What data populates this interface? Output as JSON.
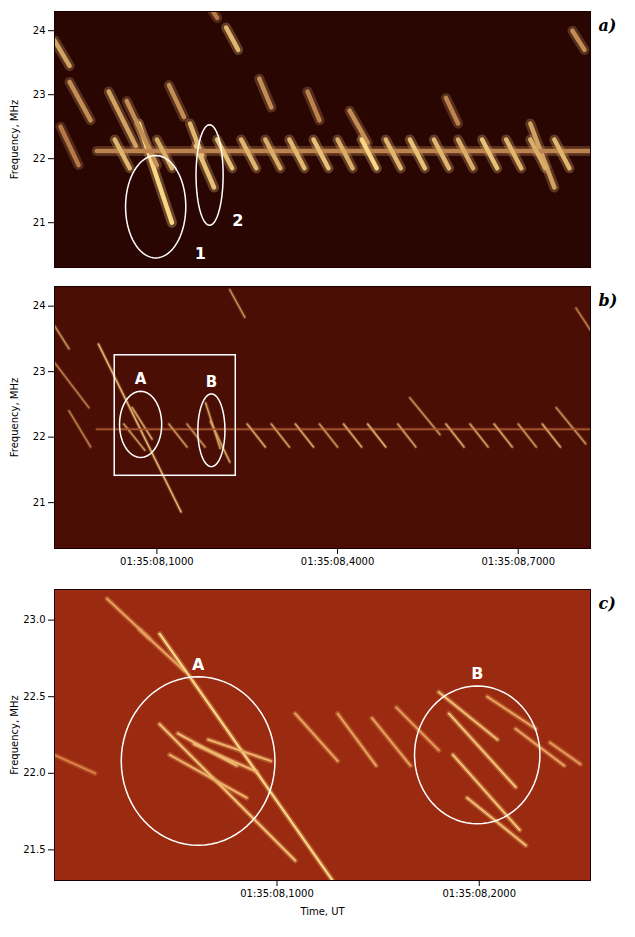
{
  "chart_data": [
    {
      "type": "spectrogram",
      "title": "a)",
      "ylabel": "Frequency, MHz",
      "xlim": [
        -0.07,
        0.82
      ],
      "ylim": [
        20.3,
        24.3
      ],
      "yticks": [
        21,
        22,
        23,
        24
      ],
      "tick_labels": "y",
      "grid": false,
      "color": "#ffe08a",
      "bursts": [
        {
          "t1": -0.07,
          "f1": 23.85,
          "t2": -0.045,
          "f2": 23.45,
          "intensity": 0.7
        },
        {
          "t1": -0.045,
          "f1": 23.2,
          "t2": -0.01,
          "f2": 22.6,
          "intensity": 0.6
        },
        {
          "t1": -0.06,
          "f1": 22.5,
          "t2": -0.03,
          "f2": 21.9,
          "intensity": 0.5
        },
        {
          "t1": 0.02,
          "f1": 23.05,
          "t2": 0.065,
          "f2": 22.2,
          "intensity": 0.7
        },
        {
          "t1": 0.07,
          "f1": 22.55,
          "t2": 0.125,
          "f2": 21.0,
          "intensity": 0.95
        },
        {
          "t1": 0.05,
          "f1": 22.9,
          "t2": 0.1,
          "f2": 21.9,
          "intensity": 0.6
        },
        {
          "t1": 0.12,
          "f1": 23.15,
          "t2": 0.145,
          "f2": 22.65,
          "intensity": 0.6
        },
        {
          "t1": 0.155,
          "f1": 22.55,
          "t2": 0.175,
          "f2": 22.05,
          "intensity": 0.8
        },
        {
          "t1": 0.165,
          "f1": 22.2,
          "t2": 0.195,
          "f2": 21.55,
          "intensity": 0.85
        },
        {
          "t1": 0.215,
          "f1": 24.05,
          "t2": 0.235,
          "f2": 23.7,
          "intensity": 0.8
        },
        {
          "t1": 0.19,
          "f1": 24.35,
          "t2": 0.2,
          "f2": 24.2,
          "intensity": 0.5
        },
        {
          "t1": 0.27,
          "f1": 23.25,
          "t2": 0.29,
          "f2": 22.8,
          "intensity": 0.6
        },
        {
          "t1": 0.35,
          "f1": 23.05,
          "t2": 0.37,
          "f2": 22.6,
          "intensity": 0.55
        },
        {
          "t1": 0.42,
          "f1": 22.75,
          "t2": 0.45,
          "f2": 22.25,
          "intensity": 0.6
        },
        {
          "t1": 0.58,
          "f1": 22.95,
          "t2": 0.6,
          "f2": 22.55,
          "intensity": 0.55
        },
        {
          "t1": 0.72,
          "f1": 22.55,
          "t2": 0.76,
          "f2": 21.55,
          "intensity": 0.7
        },
        {
          "t1": 0.79,
          "f1": 24.0,
          "t2": 0.81,
          "f2": 23.7,
          "intensity": 0.6
        },
        {
          "t1": 0.0,
          "f1": 22.12,
          "t2": 0.82,
          "f2": 22.12,
          "intensity": 0.55
        },
        {
          "t1": 0.03,
          "f1": 22.3,
          "t2": 0.055,
          "f2": 21.85,
          "intensity": 0.8
        },
        {
          "t1": 0.1,
          "f1": 22.3,
          "t2": 0.125,
          "f2": 21.85,
          "intensity": 0.75
        },
        {
          "t1": 0.2,
          "f1": 22.3,
          "t2": 0.225,
          "f2": 21.85,
          "intensity": 0.85
        },
        {
          "t1": 0.24,
          "f1": 22.3,
          "t2": 0.265,
          "f2": 21.85,
          "intensity": 0.8
        },
        {
          "t1": 0.28,
          "f1": 22.3,
          "t2": 0.305,
          "f2": 21.85,
          "intensity": 0.75
        },
        {
          "t1": 0.32,
          "f1": 22.3,
          "t2": 0.345,
          "f2": 21.85,
          "intensity": 0.8
        },
        {
          "t1": 0.36,
          "f1": 22.3,
          "t2": 0.385,
          "f2": 21.85,
          "intensity": 0.85
        },
        {
          "t1": 0.4,
          "f1": 22.3,
          "t2": 0.425,
          "f2": 21.85,
          "intensity": 0.75
        },
        {
          "t1": 0.44,
          "f1": 22.3,
          "t2": 0.465,
          "f2": 21.85,
          "intensity": 0.95
        },
        {
          "t1": 0.48,
          "f1": 22.3,
          "t2": 0.505,
          "f2": 21.85,
          "intensity": 0.8
        },
        {
          "t1": 0.52,
          "f1": 22.3,
          "t2": 0.545,
          "f2": 21.85,
          "intensity": 0.85
        },
        {
          "t1": 0.56,
          "f1": 22.3,
          "t2": 0.585,
          "f2": 21.85,
          "intensity": 0.8
        },
        {
          "t1": 0.6,
          "f1": 22.3,
          "t2": 0.625,
          "f2": 21.85,
          "intensity": 0.75
        },
        {
          "t1": 0.64,
          "f1": 22.3,
          "t2": 0.665,
          "f2": 21.85,
          "intensity": 0.85
        },
        {
          "t1": 0.68,
          "f1": 22.3,
          "t2": 0.705,
          "f2": 21.85,
          "intensity": 0.8
        },
        {
          "t1": 0.72,
          "f1": 22.3,
          "t2": 0.745,
          "f2": 21.85,
          "intensity": 0.75
        },
        {
          "t1": 0.76,
          "f1": 22.3,
          "t2": 0.785,
          "f2": 21.85,
          "intensity": 0.8
        }
      ],
      "annotations": [
        {
          "text": "1",
          "marker": "ellipse",
          "t_range": [
            0.048,
            0.148
          ],
          "f_range": [
            20.45,
            22.05
          ]
        },
        {
          "text": "2",
          "marker": "ellipse",
          "t_range": [
            0.165,
            0.21
          ],
          "f_range": [
            20.96,
            22.53
          ]
        }
      ]
    },
    {
      "type": "spectrogram",
      "title": "b)",
      "ylabel": "Frequency, MHz",
      "xlim": [
        -0.07,
        0.82
      ],
      "ylim": [
        20.3,
        24.3
      ],
      "yticks": [
        21,
        22,
        23,
        24
      ],
      "xticks": [
        {
          "value": 0.1,
          "label": "01:35:08,1000"
        },
        {
          "value": 0.4,
          "label": "01:35:08,4000"
        },
        {
          "value": 0.7,
          "label": "01:35:08,7000"
        }
      ],
      "grid": false,
      "color": "#ffe08a",
      "bursts": [
        {
          "t1": -0.07,
          "f1": 23.7,
          "t2": -0.046,
          "f2": 23.35,
          "intensity": 0.6
        },
        {
          "t1": -0.07,
          "f1": 23.14,
          "t2": -0.013,
          "f2": 22.45,
          "intensity": 0.5
        },
        {
          "t1": -0.046,
          "f1": 22.4,
          "t2": -0.01,
          "f2": 21.85,
          "intensity": 0.5
        },
        {
          "t1": 0.003,
          "f1": 23.42,
          "t2": 0.14,
          "f2": 20.86,
          "intensity": 0.8
        },
        {
          "t1": 0.059,
          "f1": 22.45,
          "t2": 0.092,
          "f2": 21.97,
          "intensity": 0.7
        },
        {
          "t1": 0.045,
          "f1": 22.2,
          "t2": 0.08,
          "f2": 21.8,
          "intensity": 0.6
        },
        {
          "t1": 0.181,
          "f1": 22.52,
          "t2": 0.205,
          "f2": 21.83,
          "intensity": 0.7
        },
        {
          "t1": 0.189,
          "f1": 22.24,
          "t2": 0.221,
          "f2": 21.62,
          "intensity": 0.7
        },
        {
          "t1": 0.221,
          "f1": 24.25,
          "t2": 0.246,
          "f2": 23.83,
          "intensity": 0.6
        },
        {
          "t1": 0.52,
          "f1": 22.6,
          "t2": 0.57,
          "f2": 22.04,
          "intensity": 0.6
        },
        {
          "t1": 0.763,
          "f1": 22.45,
          "t2": 0.812,
          "f2": 21.9,
          "intensity": 0.6
        },
        {
          "t1": 0.796,
          "f1": 23.97,
          "t2": 0.82,
          "f2": 23.63,
          "intensity": 0.5
        },
        {
          "t1": 0.0,
          "f1": 22.12,
          "t2": 0.82,
          "f2": 22.12,
          "intensity": 0.3
        },
        {
          "t1": 0.12,
          "f1": 22.2,
          "t2": 0.15,
          "f2": 21.85,
          "intensity": 0.6
        },
        {
          "t1": 0.15,
          "f1": 22.2,
          "t2": 0.18,
          "f2": 21.85,
          "intensity": 0.55
        },
        {
          "t1": 0.25,
          "f1": 22.2,
          "t2": 0.28,
          "f2": 21.85,
          "intensity": 0.7
        },
        {
          "t1": 0.29,
          "f1": 22.2,
          "t2": 0.32,
          "f2": 21.85,
          "intensity": 0.65
        },
        {
          "t1": 0.33,
          "f1": 22.2,
          "t2": 0.36,
          "f2": 21.85,
          "intensity": 0.7
        },
        {
          "t1": 0.37,
          "f1": 22.2,
          "t2": 0.4,
          "f2": 21.85,
          "intensity": 0.6
        },
        {
          "t1": 0.41,
          "f1": 22.2,
          "t2": 0.44,
          "f2": 21.85,
          "intensity": 0.7
        },
        {
          "t1": 0.45,
          "f1": 22.2,
          "t2": 0.48,
          "f2": 21.85,
          "intensity": 0.75
        },
        {
          "t1": 0.5,
          "f1": 22.2,
          "t2": 0.53,
          "f2": 21.85,
          "intensity": 0.65
        },
        {
          "t1": 0.58,
          "f1": 22.2,
          "t2": 0.61,
          "f2": 21.85,
          "intensity": 0.7
        },
        {
          "t1": 0.62,
          "f1": 22.2,
          "t2": 0.65,
          "f2": 21.85,
          "intensity": 0.65
        },
        {
          "t1": 0.66,
          "f1": 22.2,
          "t2": 0.69,
          "f2": 21.85,
          "intensity": 0.7
        },
        {
          "t1": 0.7,
          "f1": 22.2,
          "t2": 0.73,
          "f2": 21.85,
          "intensity": 0.6
        },
        {
          "t1": 0.74,
          "f1": 22.2,
          "t2": 0.77,
          "f2": 21.85,
          "intensity": 0.7
        }
      ],
      "annotations": [
        {
          "marker": "rectangle",
          "t_range": [
            0.03,
            0.231
          ],
          "f_range": [
            21.41,
            23.25
          ]
        },
        {
          "text": "A",
          "marker": "ellipse",
          "t_range": [
            0.038,
            0.108
          ],
          "f_range": [
            21.69,
            22.7
          ]
        },
        {
          "text": "B",
          "marker": "ellipse",
          "t_range": [
            0.168,
            0.213
          ],
          "f_range": [
            21.55,
            22.66
          ]
        }
      ]
    },
    {
      "type": "spectrogram",
      "title": "c)",
      "ylabel": "Frequency, MHz",
      "xlabel": "Time, UT",
      "xlim": [
        -0.01,
        0.255
      ],
      "ylim": [
        21.3,
        23.2
      ],
      "yticks": [
        21.5,
        {
          "value": 22,
          "label": "22.0"
        },
        22.5,
        {
          "value": 23,
          "label": "23.0"
        }
      ],
      "xticks": [
        {
          "value": 0.1,
          "label": "01:35:08,1000"
        },
        {
          "value": 0.2,
          "label": "01:35:08,2000"
        }
      ],
      "grid": false,
      "color": "#ffe08a",
      "bursts": [
        {
          "t1": 0.016,
          "f1": 23.14,
          "t2": 0.037,
          "f2": 22.88,
          "intensity": 0.6
        },
        {
          "t1": 0.032,
          "f1": 22.94,
          "t2": 0.054,
          "f2": 22.67,
          "intensity": 0.6
        },
        {
          "t1": 0.042,
          "f1": 22.91,
          "t2": 0.128,
          "f2": 21.29,
          "intensity": 0.95
        },
        {
          "t1": 0.042,
          "f1": 22.32,
          "t2": 0.109,
          "f2": 21.43,
          "intensity": 0.8
        },
        {
          "t1": 0.051,
          "f1": 22.26,
          "t2": 0.08,
          "f2": 22.05,
          "intensity": 0.75
        },
        {
          "t1": 0.059,
          "f1": 22.19,
          "t2": 0.09,
          "f2": 22.01,
          "intensity": 0.75
        },
        {
          "t1": 0.066,
          "f1": 22.22,
          "t2": 0.097,
          "f2": 22.08,
          "intensity": 0.7
        },
        {
          "t1": 0.047,
          "f1": 22.12,
          "t2": 0.085,
          "f2": 21.84,
          "intensity": 0.7
        },
        {
          "t1": 0.109,
          "f1": 22.39,
          "t2": 0.13,
          "f2": 22.08,
          "intensity": 0.6
        },
        {
          "t1": 0.13,
          "f1": 22.39,
          "t2": 0.149,
          "f2": 22.05,
          "intensity": 0.6
        },
        {
          "t1": 0.147,
          "f1": 22.36,
          "t2": 0.166,
          "f2": 22.05,
          "intensity": 0.6
        },
        {
          "t1": 0.159,
          "f1": 22.43,
          "t2": 0.18,
          "f2": 22.15,
          "intensity": 0.55
        },
        {
          "t1": 0.18,
          "f1": 22.53,
          "t2": 0.209,
          "f2": 22.22,
          "intensity": 0.75
        },
        {
          "t1": 0.185,
          "f1": 22.39,
          "t2": 0.218,
          "f2": 21.91,
          "intensity": 0.8
        },
        {
          "t1": 0.187,
          "f1": 22.12,
          "t2": 0.22,
          "f2": 21.63,
          "intensity": 0.8
        },
        {
          "t1": 0.194,
          "f1": 21.84,
          "t2": 0.223,
          "f2": 21.53,
          "intensity": 0.75
        },
        {
          "t1": 0.204,
          "f1": 22.5,
          "t2": 0.228,
          "f2": 22.29,
          "intensity": 0.6
        },
        {
          "t1": 0.218,
          "f1": 22.29,
          "t2": 0.242,
          "f2": 22.05,
          "intensity": 0.6
        },
        {
          "t1": 0.235,
          "f1": 22.2,
          "t2": 0.25,
          "f2": 22.06,
          "intensity": 0.55
        },
        {
          "t1": -0.01,
          "f1": 22.12,
          "t2": 0.01,
          "f2": 22.0,
          "intensity": 0.4
        }
      ],
      "annotations": [
        {
          "text": "A",
          "marker": "ellipse",
          "t_range": [
            0.023,
            0.099
          ],
          "f_range": [
            21.53,
            22.63
          ]
        },
        {
          "text": "B",
          "marker": "ellipse",
          "t_range": [
            0.168,
            0.23
          ],
          "f_range": [
            21.67,
            22.57
          ]
        }
      ]
    }
  ]
}
